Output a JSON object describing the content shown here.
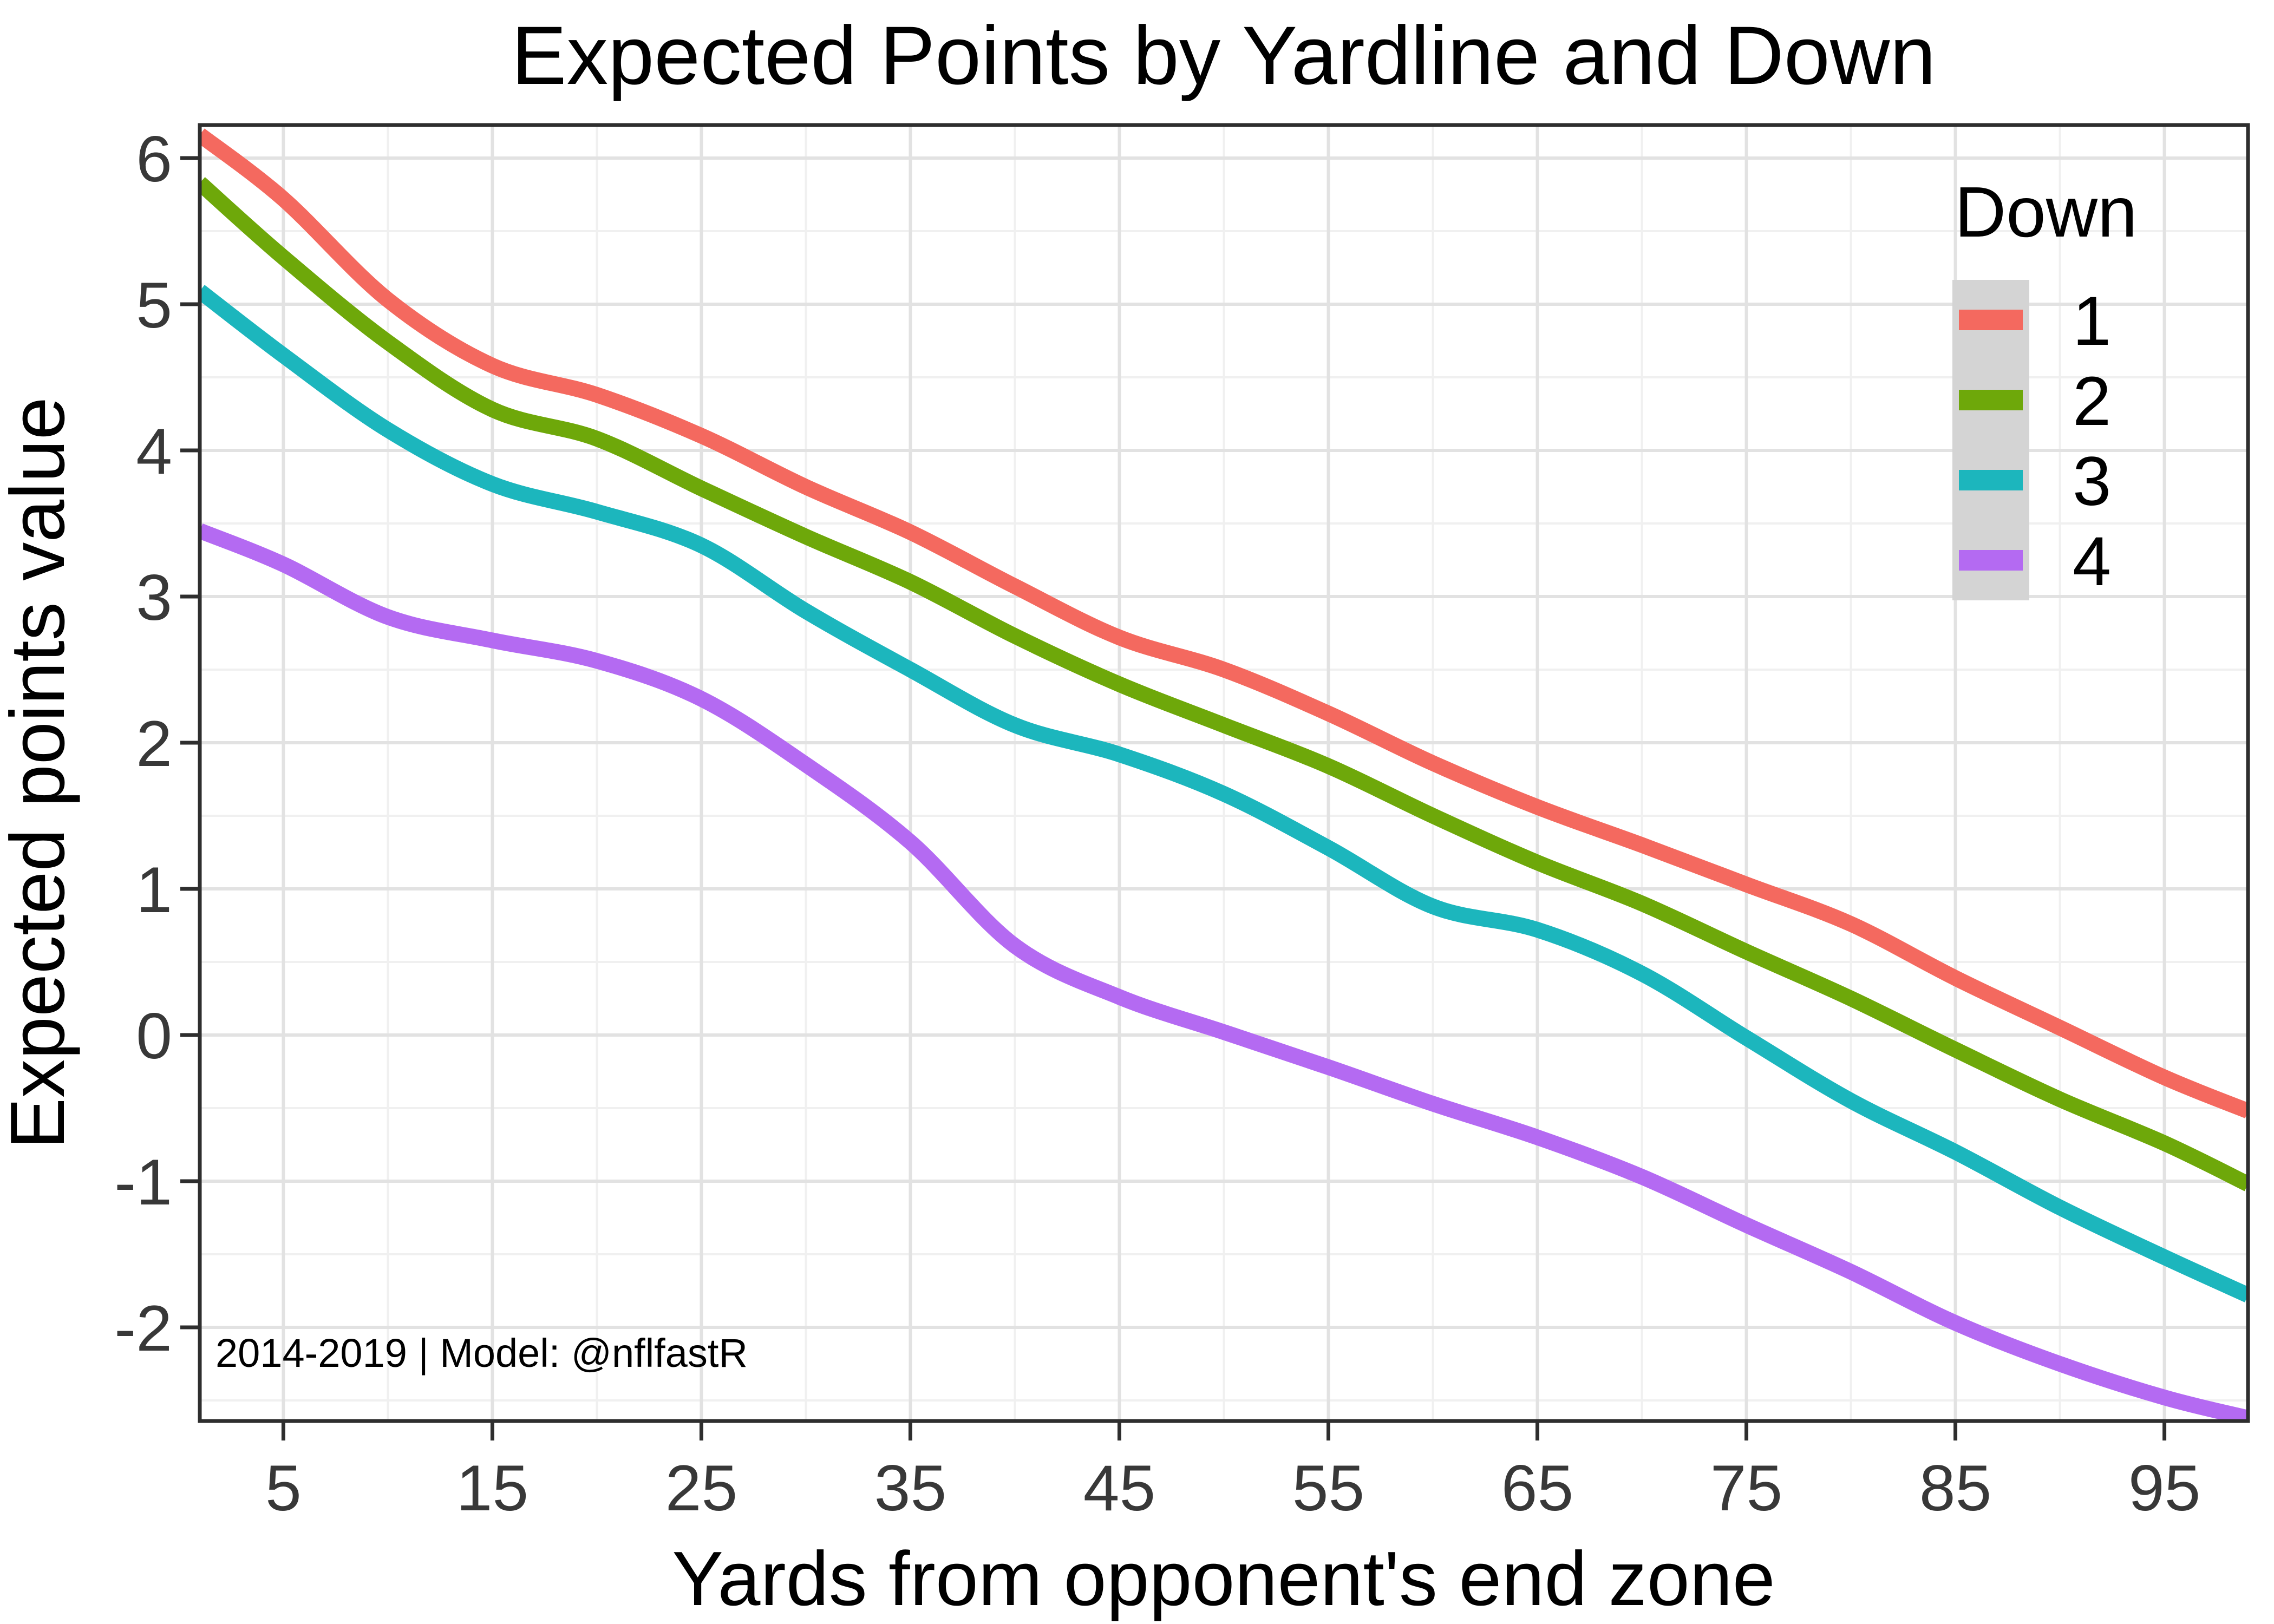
{
  "title": "Expected Points by Yardline and Down",
  "caption": "2014-2019 | Model: @nflfastR",
  "x_axis": {
    "label": "Yards from opponent's end zone",
    "ticks": [
      5,
      15,
      25,
      35,
      45,
      55,
      65,
      75,
      85,
      95
    ],
    "minor_ticks": [
      10,
      20,
      30,
      40,
      50,
      60,
      70,
      80,
      90
    ],
    "range": [
      1,
      99
    ]
  },
  "y_axis": {
    "label": "Expected points value",
    "ticks": [
      -2,
      -1,
      0,
      1,
      2,
      3,
      4,
      5,
      6
    ],
    "minor_step": 0.5,
    "range": [
      -2.64,
      6.23
    ]
  },
  "legend": {
    "title": "Down",
    "position": "top-right-inside",
    "key_background": "#D4D4D4",
    "entries": [
      {
        "label": "1",
        "color": "#F4695F"
      },
      {
        "label": "2",
        "color": "#6EA80A"
      },
      {
        "label": "3",
        "color": "#1CB6BD"
      },
      {
        "label": "4",
        "color": "#B46AF2"
      }
    ]
  },
  "style_colors": {
    "grid_major": "#E2E2E2",
    "grid_minor": "#F0F0F0",
    "panel_border": "#2E2E2E",
    "tick_text": "#383838"
  },
  "chart_data": {
    "type": "line",
    "title": "Expected Points by Yardline and Down",
    "xlabel": "Yards from opponent's end zone",
    "ylabel": "Expected points value",
    "xlim": [
      1,
      99
    ],
    "ylim": [
      -2.64,
      6.23
    ],
    "grid": "on",
    "legend_position": "top-right-inside",
    "x": [
      1,
      5,
      10,
      15,
      20,
      25,
      30,
      35,
      40,
      45,
      50,
      55,
      60,
      65,
      70,
      75,
      80,
      85,
      90,
      95,
      99
    ],
    "series": [
      {
        "name": "1",
        "color": "#F4695F",
        "values": [
          6.16,
          5.72,
          5.03,
          4.58,
          4.38,
          4.1,
          3.75,
          3.44,
          3.07,
          2.72,
          2.5,
          2.2,
          1.86,
          1.56,
          1.3,
          1.03,
          0.76,
          0.39,
          0.05,
          -0.29,
          -0.52
        ]
      },
      {
        "name": "2",
        "color": "#6EA80A",
        "values": [
          5.83,
          5.32,
          4.74,
          4.28,
          4.08,
          3.74,
          3.41,
          3.1,
          2.73,
          2.4,
          2.12,
          1.84,
          1.5,
          1.18,
          0.9,
          0.57,
          0.25,
          -0.1,
          -0.44,
          -0.74,
          -1.02
        ]
      },
      {
        "name": "3",
        "color": "#1CB6BD",
        "values": [
          5.09,
          4.65,
          4.14,
          3.77,
          3.58,
          3.35,
          2.9,
          2.5,
          2.12,
          1.92,
          1.65,
          1.28,
          0.88,
          0.72,
          0.42,
          -0.02,
          -0.45,
          -0.8,
          -1.18,
          -1.52,
          -1.78
        ]
      },
      {
        "name": "4",
        "color": "#B46AF2",
        "values": [
          3.45,
          3.22,
          2.86,
          2.7,
          2.56,
          2.3,
          1.85,
          1.32,
          0.61,
          0.26,
          0.02,
          -0.22,
          -0.47,
          -0.7,
          -0.97,
          -1.3,
          -1.62,
          -1.97,
          -2.25,
          -2.48,
          -2.62
        ]
      }
    ]
  }
}
